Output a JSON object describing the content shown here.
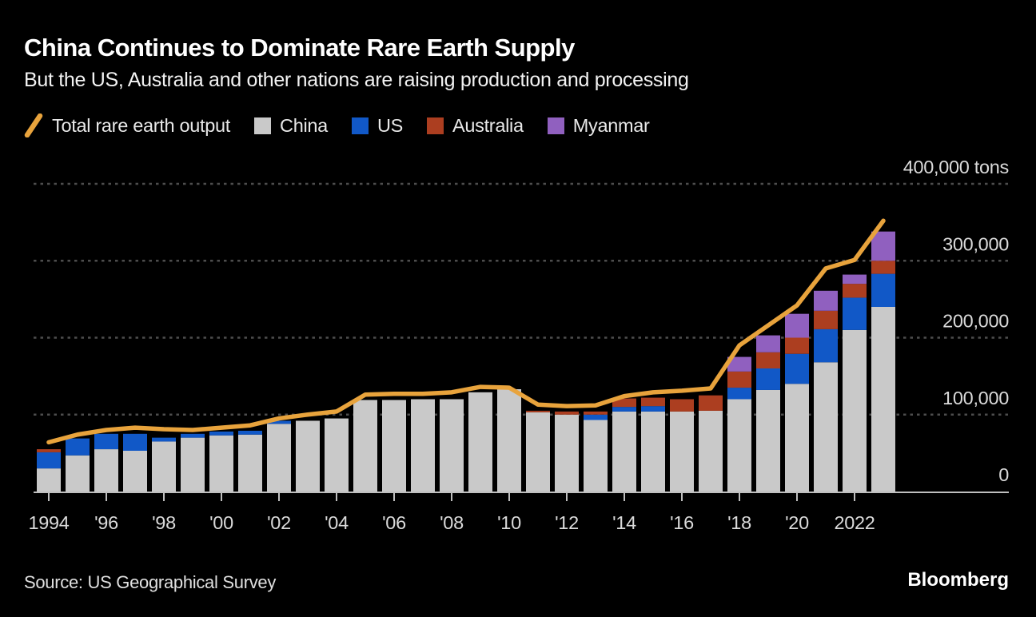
{
  "canvas": {
    "background": "#000000",
    "plot_baseline_color": "#bfbfbf",
    "gridline_color": "#4d4d4d",
    "axis_text_color": "#dadada"
  },
  "header": {
    "title": "China Continues to Dominate Rare Earth Supply",
    "subtitle": "But the US, Australia and other nations are raising production and processing"
  },
  "legend": {
    "position": "top",
    "items": [
      {
        "label": "Total rare earth output",
        "swatch": "line",
        "color": "#e8a33c"
      },
      {
        "label": "China",
        "swatch": "square",
        "color": "#c9c9c9"
      },
      {
        "label": "US",
        "swatch": "square",
        "color": "#1158c7"
      },
      {
        "label": "Australia",
        "swatch": "square",
        "color": "#ac3e20"
      },
      {
        "label": "Myanmar",
        "swatch": "square",
        "color": "#9060bf"
      }
    ]
  },
  "chart_data": {
    "type": "bar",
    "subtype": "stacked-bars-with-total-line",
    "unit": "tons",
    "grid": "horizontal-dashed",
    "legend_position": "top",
    "ylim": [
      0,
      400000
    ],
    "x": [
      1994,
      1995,
      1996,
      1997,
      1998,
      1999,
      2000,
      2001,
      2002,
      2003,
      2004,
      2005,
      2006,
      2007,
      2008,
      2009,
      2010,
      2011,
      2012,
      2013,
      2014,
      2015,
      2016,
      2017,
      2018,
      2019,
      2020,
      2021,
      2022,
      2023
    ],
    "series": [
      {
        "name": "China",
        "type": "bar",
        "color": "#c9c9c9",
        "values": [
          30000,
          47000,
          55000,
          53000,
          65000,
          70000,
          73000,
          74000,
          88000,
          92000,
          95000,
          119000,
          119000,
          120000,
          120000,
          129000,
          133000,
          103000,
          100000,
          93000,
          104000,
          104000,
          104000,
          105000,
          120000,
          132000,
          140000,
          168000,
          210000,
          240000
        ]
      },
      {
        "name": "US",
        "type": "bar",
        "color": "#1158c7",
        "values": [
          21000,
          22000,
          20000,
          22000,
          5000,
          5000,
          5000,
          5000,
          4000,
          0,
          0,
          0,
          0,
          0,
          0,
          0,
          0,
          0,
          0,
          7000,
          6000,
          7000,
          0,
          0,
          15000,
          28000,
          39000,
          43000,
          42000,
          43000
        ]
      },
      {
        "name": "Australia",
        "type": "bar",
        "color": "#ac3e20",
        "values": [
          4000,
          0,
          0,
          0,
          0,
          0,
          0,
          0,
          0,
          0,
          0,
          0,
          0,
          0,
          0,
          0,
          0,
          2000,
          4000,
          4000,
          11000,
          11000,
          16000,
          20000,
          21000,
          21000,
          21000,
          24000,
          18000,
          17000
        ]
      },
      {
        "name": "Myanmar",
        "type": "bar",
        "color": "#9060bf",
        "values": [
          0,
          0,
          0,
          0,
          0,
          0,
          0,
          0,
          0,
          0,
          0,
          0,
          0,
          0,
          0,
          0,
          0,
          0,
          0,
          0,
          0,
          0,
          0,
          0,
          19000,
          22000,
          31000,
          26000,
          12000,
          38000
        ]
      },
      {
        "name": "Total rare earth output",
        "type": "line",
        "color": "#e8a33c",
        "values": [
          64000,
          74000,
          80000,
          83000,
          81000,
          80000,
          83000,
          86000,
          95000,
          100000,
          104000,
          126000,
          127000,
          127000,
          129000,
          136000,
          135000,
          113000,
          111000,
          112000,
          124000,
          129000,
          131000,
          134000,
          190000,
          216000,
          242000,
          290000,
          301000,
          352000
        ]
      }
    ],
    "yticks": [
      {
        "value": 0,
        "label": "0"
      },
      {
        "value": 100000,
        "label": "100,000"
      },
      {
        "value": 200000,
        "label": "200,000"
      },
      {
        "value": 300000,
        "label": "300,000"
      },
      {
        "value": 400000,
        "label": "400,000 tons"
      }
    ],
    "xticks": [
      {
        "year": 1994,
        "label": "1994"
      },
      {
        "year": 1996,
        "label": "'96"
      },
      {
        "year": 1998,
        "label": "'98"
      },
      {
        "year": 2000,
        "label": "'00"
      },
      {
        "year": 2002,
        "label": "'02"
      },
      {
        "year": 2004,
        "label": "'04"
      },
      {
        "year": 2006,
        "label": "'06"
      },
      {
        "year": 2008,
        "label": "'08"
      },
      {
        "year": 2010,
        "label": "'10"
      },
      {
        "year": 2012,
        "label": "'12"
      },
      {
        "year": 2014,
        "label": "'14"
      },
      {
        "year": 2016,
        "label": "'16"
      },
      {
        "year": 2018,
        "label": "'18"
      },
      {
        "year": 2020,
        "label": "'20"
      },
      {
        "year": 2022,
        "label": "2022"
      }
    ]
  },
  "footer": {
    "source": "Source: US Geographical Survey",
    "brand": "Bloomberg"
  }
}
